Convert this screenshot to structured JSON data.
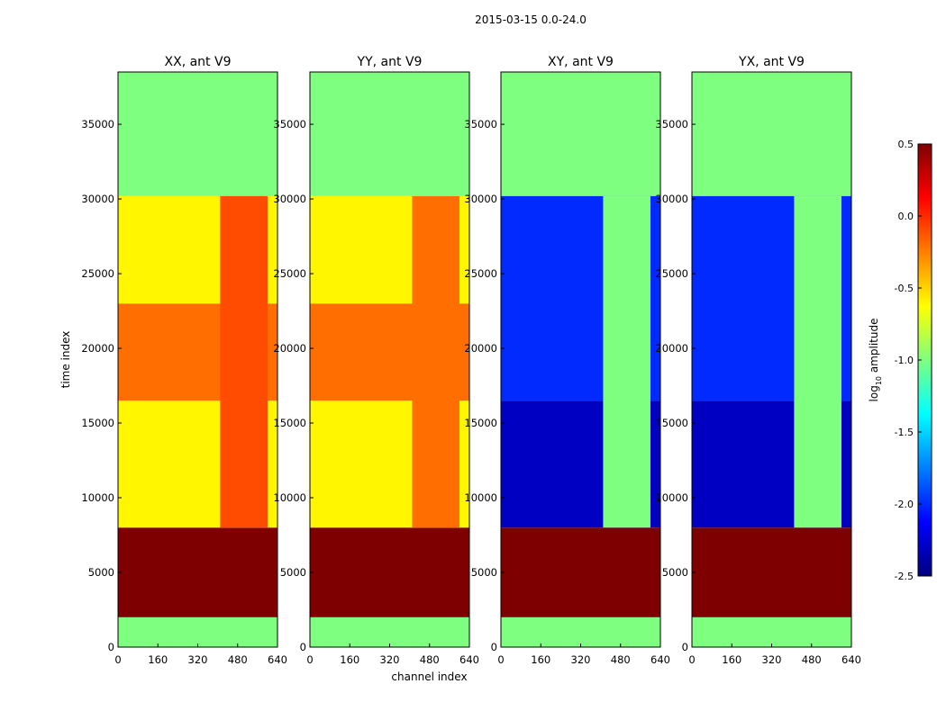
{
  "suptitle": "2015-03-15 0.0-24.0",
  "colors": {
    "background": "#7fff7f",
    "saturated": "#7f0000",
    "jet": [
      "#00007f",
      "#0000ff",
      "#007fff",
      "#00ffff",
      "#7fff7f",
      "#ffff00",
      "#ff7f00",
      "#ff0000",
      "#7f0000"
    ]
  },
  "chart_data": [
    {
      "type": "heatmap",
      "title": "XX, ant V9",
      "ylabel": "time index",
      "xlabel": "",
      "xlim": [
        0,
        640
      ],
      "ylim": [
        0,
        38500
      ],
      "xticks": [
        "0",
        "160",
        "320",
        "480",
        "640"
      ],
      "yticks": [
        "0",
        "5000",
        "10000",
        "15000",
        "20000",
        "25000",
        "30000",
        "35000"
      ],
      "regions": [
        {
          "t0": 0,
          "t1": 2000,
          "c0": 0,
          "c1": 640,
          "level": -1.0
        },
        {
          "t0": 2000,
          "t1": 8000,
          "c0": 0,
          "c1": 640,
          "level": 0.5
        },
        {
          "t0": 8000,
          "t1": 16500,
          "c0": 0,
          "c1": 640,
          "level": -0.6
        },
        {
          "t0": 16500,
          "t1": 23000,
          "c0": 0,
          "c1": 640,
          "level": -0.2
        },
        {
          "t0": 23000,
          "t1": 30200,
          "c0": 0,
          "c1": 640,
          "level": -0.6
        },
        {
          "t0": 8000,
          "t1": 30200,
          "c0": 410,
          "c1": 600,
          "level": -0.1
        },
        {
          "t0": 30200,
          "t1": 38500,
          "c0": 0,
          "c1": 640,
          "level": -1.0
        }
      ]
    },
    {
      "type": "heatmap",
      "title": "YY, ant V9",
      "ylabel": "",
      "xlabel": "channel index",
      "xlim": [
        0,
        640
      ],
      "ylim": [
        0,
        38500
      ],
      "xticks": [
        "0",
        "160",
        "320",
        "480",
        "640"
      ],
      "yticks": [
        "0",
        "5000",
        "10000",
        "15000",
        "20000",
        "25000",
        "30000",
        "35000"
      ],
      "regions": [
        {
          "t0": 0,
          "t1": 2000,
          "c0": 0,
          "c1": 640,
          "level": -1.0
        },
        {
          "t0": 2000,
          "t1": 8000,
          "c0": 0,
          "c1": 640,
          "level": 0.5
        },
        {
          "t0": 8000,
          "t1": 16500,
          "c0": 0,
          "c1": 640,
          "level": -0.6
        },
        {
          "t0": 16500,
          "t1": 23000,
          "c0": 0,
          "c1": 640,
          "level": -0.2
        },
        {
          "t0": 23000,
          "t1": 30200,
          "c0": 0,
          "c1": 640,
          "level": -0.6
        },
        {
          "t0": 8000,
          "t1": 30200,
          "c0": 410,
          "c1": 600,
          "level": -0.2
        },
        {
          "t0": 30200,
          "t1": 38500,
          "c0": 0,
          "c1": 640,
          "level": -1.0
        }
      ]
    },
    {
      "type": "heatmap",
      "title": "XY, ant V9",
      "ylabel": "",
      "xlabel": "",
      "xlim": [
        0,
        640
      ],
      "ylim": [
        0,
        38500
      ],
      "xticks": [
        "0",
        "160",
        "320",
        "480",
        "640"
      ],
      "yticks": [
        "0",
        "5000",
        "10000",
        "15000",
        "20000",
        "25000",
        "30000",
        "35000"
      ],
      "regions": [
        {
          "t0": 0,
          "t1": 2000,
          "c0": 0,
          "c1": 640,
          "level": -1.0
        },
        {
          "t0": 2000,
          "t1": 8000,
          "c0": 0,
          "c1": 640,
          "level": 0.5
        },
        {
          "t0": 8000,
          "t1": 16500,
          "c0": 0,
          "c1": 640,
          "level": -2.3
        },
        {
          "t0": 16500,
          "t1": 30200,
          "c0": 0,
          "c1": 640,
          "level": -2.0
        },
        {
          "t0": 8000,
          "t1": 30200,
          "c0": 410,
          "c1": 600,
          "level": -1.0
        },
        {
          "t0": 30200,
          "t1": 38500,
          "c0": 0,
          "c1": 640,
          "level": -1.0
        }
      ]
    },
    {
      "type": "heatmap",
      "title": "YX, ant V9",
      "ylabel": "",
      "xlabel": "",
      "xlim": [
        0,
        640
      ],
      "ylim": [
        0,
        38500
      ],
      "xticks": [
        "0",
        "160",
        "320",
        "480",
        "640"
      ],
      "yticks": [
        "0",
        "5000",
        "10000",
        "15000",
        "20000",
        "25000",
        "30000",
        "35000"
      ],
      "regions": [
        {
          "t0": 0,
          "t1": 2000,
          "c0": 0,
          "c1": 640,
          "level": -1.0
        },
        {
          "t0": 2000,
          "t1": 8000,
          "c0": 0,
          "c1": 640,
          "level": 0.5
        },
        {
          "t0": 8000,
          "t1": 16500,
          "c0": 0,
          "c1": 640,
          "level": -2.3
        },
        {
          "t0": 16500,
          "t1": 30200,
          "c0": 0,
          "c1": 640,
          "level": -2.0
        },
        {
          "t0": 8000,
          "t1": 30200,
          "c0": 410,
          "c1": 600,
          "level": -1.0
        },
        {
          "t0": 30200,
          "t1": 38500,
          "c0": 0,
          "c1": 640,
          "level": -1.0
        }
      ]
    }
  ],
  "colorbar": {
    "label_prefix": "log",
    "label_sub": "10",
    "label_suffix": " amplitude",
    "vmin": -2.5,
    "vmax": 0.5,
    "ticks": [
      "-2.5",
      "-2.0",
      "-1.5",
      "-1.0",
      "-0.5",
      "0.0",
      "0.5"
    ]
  }
}
